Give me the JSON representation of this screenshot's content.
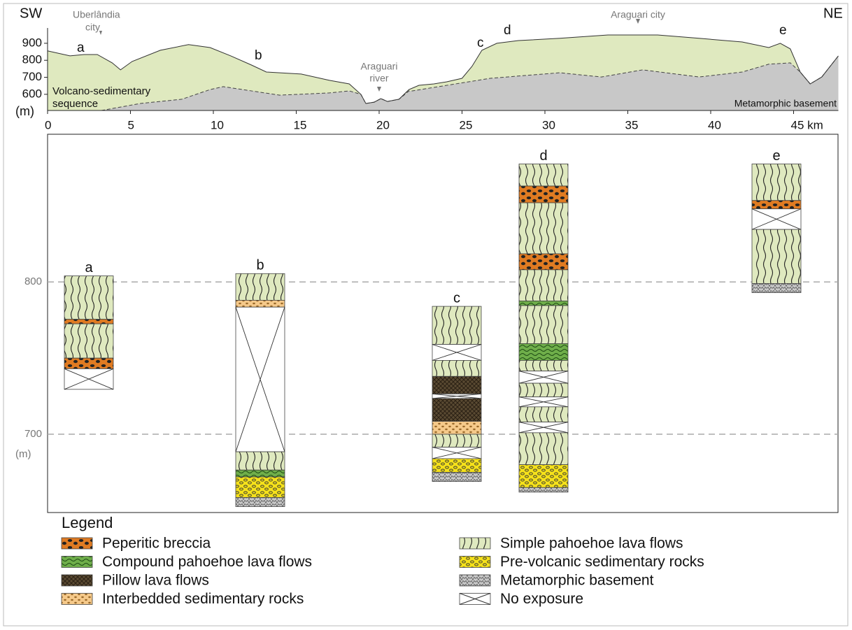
{
  "profile": {
    "left_label": "SW",
    "right_label": "NE",
    "y_unit": "(m)",
    "xlim": [
      0,
      47.7
    ],
    "ylim": [
      505,
      990
    ],
    "xticks": [
      0,
      5,
      10,
      15,
      20,
      25,
      30,
      35,
      40,
      {
        "value": 45,
        "label": "45 km"
      }
    ],
    "yticks": [
      900,
      800,
      700,
      600
    ],
    "surface": {
      "x": [
        0,
        1.35,
        2.2,
        3.0,
        3.9,
        4.4,
        5.1,
        6.8,
        8.5,
        9.8,
        11.05,
        12.3,
        13.2,
        15.3,
        17.0,
        18.2,
        18.9,
        19.2,
        19.7,
        20.1,
        20.5,
        21.2,
        21.8,
        22.4,
        23.3,
        24.1,
        25.0,
        25.6,
        26.2,
        27.1,
        28.4,
        30.9,
        33.8,
        36.8,
        39.3,
        41.9,
        43.5,
        44.2,
        44.8,
        45.4,
        46.0,
        46.7,
        47.7
      ],
      "y": [
        855,
        826,
        834,
        834,
        785,
        744,
        793,
        859,
        892,
        875,
        826,
        772,
        731,
        719,
        682,
        661,
        600,
        546,
        554,
        575,
        558,
        571,
        628,
        653,
        661,
        674,
        694,
        764,
        859,
        900,
        916,
        929,
        949,
        949,
        929,
        908,
        875,
        900,
        867,
        731,
        661,
        702,
        826
      ]
    },
    "basement": {
      "x": [
        3.25,
        5.6,
        8.1,
        9.8,
        10.6,
        14.0,
        17.0,
        18.2,
        18.9,
        19.2,
        19.7,
        20.1,
        20.5,
        21.2,
        21.8,
        22.0,
        26.7,
        30.9,
        33.4,
        35.9,
        39.3,
        41.9,
        43.5,
        44.8,
        45.4,
        46.0,
        46.7,
        47.7
      ],
      "y": [
        505,
        546,
        571,
        628,
        645,
        595,
        608,
        620,
        600,
        546,
        554,
        575,
        558,
        571,
        620,
        620,
        694,
        727,
        702,
        744,
        702,
        731,
        777,
        785,
        731,
        661,
        702,
        826
      ]
    },
    "annotations": {
      "uberlandia": [
        "Uberlândia",
        "city"
      ],
      "river": [
        "Araguari",
        "river"
      ],
      "city": "Araguari city",
      "sequence": [
        "Volcano-sedimentary",
        "sequence"
      ],
      "basement": "Metamorphic basement"
    },
    "sites": [
      "a",
      "b",
      "c",
      "d",
      "e"
    ]
  },
  "columns": {
    "ylim": [
      648.6,
      897
    ],
    "yticks": [
      800,
      700
    ],
    "y_unit": "(m)",
    "items": [
      {
        "label": "a",
        "layers": [
          {
            "color": "#dfe9bf",
            "top": 804,
            "bottom": 775.5
          },
          {
            "color": "#e07b22",
            "top": 775.5,
            "bottom": 772.5
          },
          {
            "color": "#dfe9bf",
            "top": 772.5,
            "bottom": 750
          },
          {
            "color": "#e07b22",
            "top": 750,
            "bottom": 743
          },
          {
            "color": "#ffffff",
            "top": 743,
            "bottom": 729.5
          }
        ]
      },
      {
        "label": "b",
        "layers": [
          {
            "color": "#dfe9bf",
            "top": 805.5,
            "bottom": 788
          },
          {
            "color": "#f5c98a",
            "top": 788,
            "bottom": 783.5
          },
          {
            "color": "#ffffff",
            "top": 783.5,
            "bottom": 688.5
          },
          {
            "color": "#dfe9bf",
            "top": 688.5,
            "bottom": 676.5
          },
          {
            "color": "#6fae4a",
            "top": 676.5,
            "bottom": 672
          },
          {
            "color": "#f5e11a",
            "top": 672,
            "bottom": 658.5
          },
          {
            "color": "#c8c8c8",
            "top": 658.5,
            "bottom": 652.5
          }
        ]
      },
      {
        "label": "c",
        "layers": [
          {
            "color": "#dfe9bf",
            "top": 784,
            "bottom": 759
          },
          {
            "color": "#ffffff",
            "top": 759,
            "bottom": 748.5
          },
          {
            "color": "#dfe9bf",
            "top": 748.5,
            "bottom": 738
          },
          {
            "color": "#5a4a32",
            "top": 738,
            "bottom": 726.5
          },
          {
            "color": "#ffffff",
            "top": 726.5,
            "bottom": 723.5
          },
          {
            "color": "#5a4a32",
            "top": 723.5,
            "bottom": 708.5
          },
          {
            "color": "#f5c98a",
            "top": 708.5,
            "bottom": 700
          },
          {
            "color": "#dfe9bf",
            "top": 700,
            "bottom": 691.5
          },
          {
            "color": "#ffffff",
            "top": 691.5,
            "bottom": 684
          },
          {
            "color": "#f5e11a",
            "top": 684,
            "bottom": 675
          },
          {
            "color": "#c8c8c8",
            "top": 675,
            "bottom": 669
          }
        ]
      },
      {
        "label": "d",
        "layers": [
          {
            "color": "#dfe9bf",
            "top": 877.5,
            "bottom": 863
          },
          {
            "color": "#e07b22",
            "top": 863,
            "bottom": 852
          },
          {
            "color": "#dfe9bf",
            "top": 852,
            "bottom": 818.5
          },
          {
            "color": "#e07b22",
            "top": 818.5,
            "bottom": 808
          },
          {
            "color": "#dfe9bf",
            "top": 808,
            "bottom": 787.5
          },
          {
            "color": "#6fae4a",
            "top": 787.5,
            "bottom": 784.5
          },
          {
            "color": "#dfe9bf",
            "top": 784.5,
            "bottom": 759.5
          },
          {
            "color": "#6fae4a",
            "top": 759.5,
            "bottom": 748.5
          },
          {
            "color": "#dfe9bf",
            "top": 748.5,
            "bottom": 741.5
          },
          {
            "color": "#ffffff",
            "top": 741.5,
            "bottom": 733.5
          },
          {
            "color": "#dfe9bf",
            "top": 733.5,
            "bottom": 724.5
          },
          {
            "color": "#ffffff",
            "top": 724.5,
            "bottom": 718
          },
          {
            "color": "#dfe9bf",
            "top": 718,
            "bottom": 708
          },
          {
            "color": "#ffffff",
            "top": 708,
            "bottom": 701
          },
          {
            "color": "#dfe9bf",
            "top": 701,
            "bottom": 680
          },
          {
            "color": "#f5e11a",
            "top": 680,
            "bottom": 665
          },
          {
            "color": "#c8c8c8",
            "top": 665,
            "bottom": 662
          }
        ]
      },
      {
        "label": "e",
        "layers": [
          {
            "color": "#dfe9bf",
            "top": 877.5,
            "bottom": 853.5
          },
          {
            "color": "#e07b22",
            "top": 853.5,
            "bottom": 848
          },
          {
            "color": "#ffffff",
            "top": 848,
            "bottom": 834.5
          },
          {
            "color": "#dfe9bf",
            "top": 834.5,
            "bottom": 799
          },
          {
            "color": "#c8c8c8",
            "top": 799,
            "bottom": 793
          }
        ]
      }
    ]
  },
  "legend": {
    "title": "Legend",
    "items": [
      {
        "label": "Peperitic breccia",
        "color": "#e07b22"
      },
      {
        "label": "Compound pahoehoe lava flows",
        "color": "#6fae4a"
      },
      {
        "label": "Pillow lava flows",
        "color": "#5a4a32"
      },
      {
        "label": "Interbedded sedimentary rocks",
        "color": "#f5c98a"
      },
      {
        "label": "Simple pahoehoe lava flows",
        "color": "#dfe9bf"
      },
      {
        "label": "Pre-volcanic sedimentary rocks",
        "color": "#f5e11a"
      },
      {
        "label": "Metamorphic basement",
        "color": "#c8c8c8"
      },
      {
        "label": "No exposure",
        "color": "#ffffff"
      }
    ]
  }
}
